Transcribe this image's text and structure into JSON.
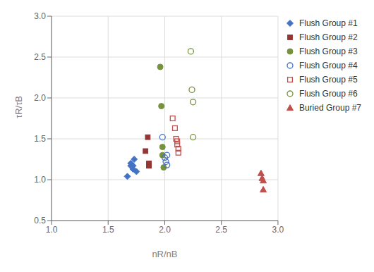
{
  "chart_data": {
    "type": "scatter",
    "xlabel": "nR/nB",
    "ylabel": "τR/τB",
    "xlim": [
      1.0,
      3.0
    ],
    "ylim": [
      0.5,
      3.0
    ],
    "xticks": [
      {
        "value": 1.0,
        "label": "1.0"
      },
      1.5,
      {
        "value": 2.0,
        "label": "2.0"
      },
      2.5,
      {
        "value": 3.0,
        "label": "3.0"
      }
    ],
    "yticks": [
      0.5,
      {
        "value": 1.0,
        "label": "1.0"
      },
      1.5,
      {
        "value": 2.0,
        "label": "2.0"
      },
      2.5,
      {
        "value": 3.0,
        "label": "3.0"
      }
    ],
    "grid": true,
    "legend": "right",
    "series": [
      {
        "name": "Flush Group #1",
        "color": "#4472C4",
        "marker": "diamond",
        "x": [
          1.67,
          1.7,
          1.7,
          1.72,
          1.72,
          1.73,
          1.75
        ],
        "y": [
          1.04,
          1.17,
          1.2,
          1.13,
          1.17,
          1.25,
          1.1
        ]
      },
      {
        "name": "Flush Group #2",
        "color": "#943634",
        "marker": "square",
        "x": [
          1.83,
          1.85,
          1.86,
          1.86,
          1.86
        ],
        "y": [
          1.35,
          1.52,
          1.17,
          1.18,
          1.2
        ]
      },
      {
        "name": "Flush Group #3",
        "color": "#76923C",
        "marker": "circle",
        "x": [
          1.96,
          1.97,
          1.98,
          1.98,
          1.99
        ],
        "y": [
          2.38,
          1.9,
          1.4,
          1.3,
          1.15
        ]
      },
      {
        "name": "Flush Group #4",
        "color": "#4472C4",
        "marker": "open_circle",
        "x": [
          1.98,
          2.0,
          2.01,
          2.02,
          2.02
        ],
        "y": [
          1.52,
          1.27,
          1.22,
          1.18,
          1.3
        ]
      },
      {
        "name": "Flush Group #5",
        "color": "#C0504D",
        "marker": "open_square",
        "x": [
          2.07,
          2.09,
          2.1,
          2.11,
          2.11,
          2.12,
          2.12
        ],
        "y": [
          1.75,
          1.63,
          1.5,
          1.47,
          1.43,
          1.38,
          1.33
        ]
      },
      {
        "name": "Flush Group #6",
        "color": "#76923C",
        "marker": "open_circle",
        "x": [
          2.23,
          2.24,
          2.25,
          2.25
        ],
        "y": [
          2.57,
          2.1,
          1.95,
          1.52
        ]
      },
      {
        "name": "Buried Group #7",
        "color": "#C0504D",
        "marker": "triangle",
        "x": [
          2.85,
          2.86,
          2.87,
          2.87
        ],
        "y": [
          1.08,
          1.02,
          0.99,
          0.88
        ]
      }
    ]
  }
}
